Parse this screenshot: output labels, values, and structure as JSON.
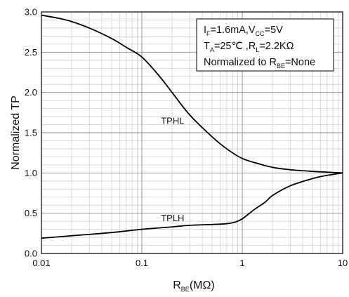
{
  "chart_data": {
    "type": "line",
    "title": "",
    "xlabel": {
      "main": "R",
      "sub": "BE",
      "tail": "(MΩ)"
    },
    "ylabel": "Normalized TP",
    "x_scale": "log",
    "xlim": [
      0.01,
      10
    ],
    "ylim": [
      0.0,
      3.0
    ],
    "grid": true,
    "x_tick_labels": [
      "0.01",
      "0.1",
      "1",
      "10"
    ],
    "y_tick_labels": [
      "0.0",
      "0.5",
      "1.0",
      "1.5",
      "2.0",
      "2.5",
      "3.0"
    ],
    "annotation": {
      "line1": {
        "p1": "I",
        "s1": "F",
        "p2": "=1.6mA,V",
        "s2": "CC",
        "p3": "=5V"
      },
      "line2": {
        "p1": "T",
        "s1": "A",
        "p2": "=25℃ ,R",
        "s2": "L",
        "p3": "=2.2KΩ"
      },
      "line3": {
        "p1": "Normalized to R",
        "s1": "BE",
        "p2": "=None"
      }
    },
    "series": [
      {
        "name": "TPHL",
        "x": [
          0.01,
          0.015,
          0.02,
          0.03,
          0.05,
          0.07,
          0.1,
          0.15,
          0.2,
          0.3,
          0.5,
          0.7,
          1,
          1.5,
          2,
          3,
          5,
          7,
          10
        ],
        "y": [
          2.96,
          2.92,
          2.88,
          2.8,
          2.67,
          2.56,
          2.44,
          2.2,
          2.0,
          1.72,
          1.45,
          1.3,
          1.18,
          1.11,
          1.07,
          1.04,
          1.02,
          1.01,
          1.0
        ]
      },
      {
        "name": "TPLH",
        "x": [
          0.01,
          0.02,
          0.05,
          0.1,
          0.2,
          0.3,
          0.5,
          0.7,
          0.85,
          1,
          1.3,
          1.7,
          2,
          3,
          5,
          7,
          10
        ],
        "y": [
          0.19,
          0.22,
          0.26,
          0.3,
          0.33,
          0.35,
          0.36,
          0.37,
          0.39,
          0.43,
          0.54,
          0.64,
          0.72,
          0.84,
          0.93,
          0.97,
          1.0
        ]
      }
    ]
  }
}
